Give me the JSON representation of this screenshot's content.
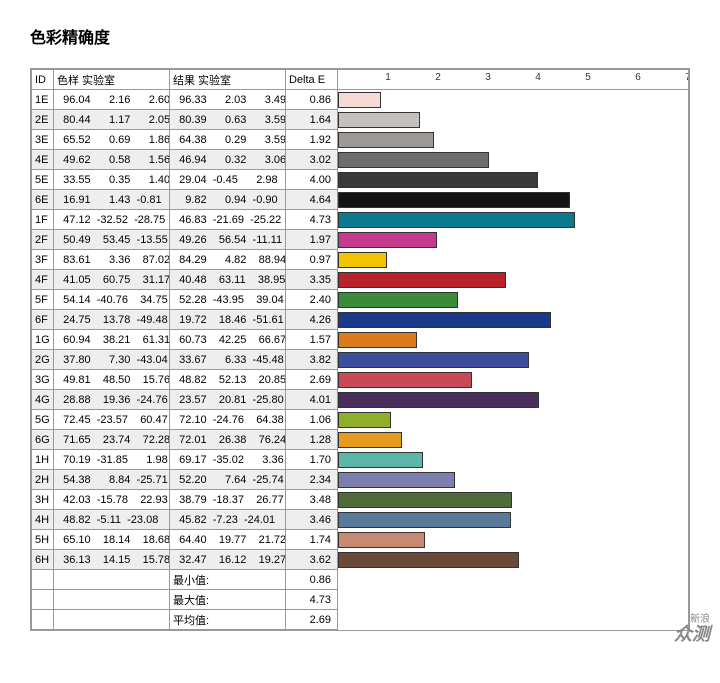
{
  "title": "色彩精确度",
  "headers": {
    "id": "ID",
    "sample": "色样 实验室",
    "result": "结果 实验室",
    "delta": "Delta E"
  },
  "chart": {
    "max": 7,
    "ticks": [
      1,
      2,
      3,
      4,
      5,
      6,
      7
    ],
    "bar_border": "#333333"
  },
  "rows": [
    {
      "id": "1E",
      "s": [
        "96.04",
        "2.16",
        "2.60"
      ],
      "r": [
        "96.33",
        "2.03",
        "3.49"
      ],
      "de": "0.86",
      "color": "#f4d9d4"
    },
    {
      "id": "2E",
      "s": [
        "80.44",
        "1.17",
        "2.05"
      ],
      "r": [
        "80.39",
        "0.63",
        "3.59"
      ],
      "de": "1.64",
      "color": "#c4c0be"
    },
    {
      "id": "3E",
      "s": [
        "65.52",
        "0.69",
        "1.86"
      ],
      "r": [
        "64.38",
        "0.29",
        "3.59"
      ],
      "de": "1.92",
      "color": "#9c9997"
    },
    {
      "id": "4E",
      "s": [
        "49.62",
        "0.58",
        "1.56"
      ],
      "r": [
        "46.94",
        "0.32",
        "3.06"
      ],
      "de": "3.02",
      "color": "#6f6d6b"
    },
    {
      "id": "5E",
      "s": [
        "33.55",
        "0.35",
        "1.40"
      ],
      "r": [
        "29.04",
        "-0.45",
        "2.98"
      ],
      "de": "4.00",
      "color": "#3c3a39"
    },
    {
      "id": "6E",
      "s": [
        "16.91",
        "1.43",
        "-0.81"
      ],
      "r": [
        "9.82",
        "0.94",
        "-0.90"
      ],
      "de": "4.64",
      "color": "#141312"
    },
    {
      "id": "1F",
      "s": [
        "47.12",
        "-32.52",
        "-28.75"
      ],
      "r": [
        "46.83",
        "-21.69",
        "-25.22"
      ],
      "de": "4.73",
      "color": "#0b7a8f"
    },
    {
      "id": "2F",
      "s": [
        "50.49",
        "53.45",
        "-13.55"
      ],
      "r": [
        "49.26",
        "56.54",
        "-11.11"
      ],
      "de": "1.97",
      "color": "#c33a8e"
    },
    {
      "id": "3F",
      "s": [
        "83.61",
        "3.36",
        "87.02"
      ],
      "r": [
        "84.29",
        "4.82",
        "88.94"
      ],
      "de": "0.97",
      "color": "#f2c300"
    },
    {
      "id": "4F",
      "s": [
        "41.05",
        "60.75",
        "31.17"
      ],
      "r": [
        "40.48",
        "63.11",
        "38.95"
      ],
      "de": "3.35",
      "color": "#b8222a"
    },
    {
      "id": "5F",
      "s": [
        "54.14",
        "-40.76",
        "34.75"
      ],
      "r": [
        "52.28",
        "-43.95",
        "39.04"
      ],
      "de": "2.40",
      "color": "#3a8b3a"
    },
    {
      "id": "6F",
      "s": [
        "24.75",
        "13.78",
        "-49.48"
      ],
      "r": [
        "19.72",
        "18.46",
        "-51.61"
      ],
      "de": "4.26",
      "color": "#1c3a8c"
    },
    {
      "id": "1G",
      "s": [
        "60.94",
        "38.21",
        "61.31"
      ],
      "r": [
        "60.73",
        "42.25",
        "66.67"
      ],
      "de": "1.57",
      "color": "#d97b1e"
    },
    {
      "id": "2G",
      "s": [
        "37.80",
        "7.30",
        "-43.04"
      ],
      "r": [
        "33.67",
        "6.33",
        "-45.48"
      ],
      "de": "3.82",
      "color": "#3a4e9c"
    },
    {
      "id": "3G",
      "s": [
        "49.81",
        "48.50",
        "15.76"
      ],
      "r": [
        "48.82",
        "52.13",
        "20.85"
      ],
      "de": "2.69",
      "color": "#c84a56"
    },
    {
      "id": "4G",
      "s": [
        "28.88",
        "19.36",
        "-24.76"
      ],
      "r": [
        "23.57",
        "20.81",
        "-25.80"
      ],
      "de": "4.01",
      "color": "#4a2f5c"
    },
    {
      "id": "5G",
      "s": [
        "72.45",
        "-23.57",
        "60.47"
      ],
      "r": [
        "72.10",
        "-24.76",
        "64.38"
      ],
      "de": "1.06",
      "color": "#8fae2a"
    },
    {
      "id": "6G",
      "s": [
        "71.65",
        "23.74",
        "72.28"
      ],
      "r": [
        "72.01",
        "26.38",
        "76.24"
      ],
      "de": "1.28",
      "color": "#e69a1e"
    },
    {
      "id": "1H",
      "s": [
        "70.19",
        "-31.85",
        "1.98"
      ],
      "r": [
        "69.17",
        "-35.02",
        "3.36"
      ],
      "de": "1.70",
      "color": "#5bb8a8"
    },
    {
      "id": "2H",
      "s": [
        "54.38",
        "8.84",
        "-25.71"
      ],
      "r": [
        "52.20",
        "7.64",
        "-25.74"
      ],
      "de": "2.34",
      "color": "#7a7fae"
    },
    {
      "id": "3H",
      "s": [
        "42.03",
        "-15.78",
        "22.93"
      ],
      "r": [
        "38.79",
        "-18.37",
        "26.77"
      ],
      "de": "3.48",
      "color": "#4f6b3a"
    },
    {
      "id": "4H",
      "s": [
        "48.82",
        "-5.11",
        "-23.08"
      ],
      "r": [
        "45.82",
        "-7.23",
        "-24.01"
      ],
      "de": "3.46",
      "color": "#5a7a9c"
    },
    {
      "id": "5H",
      "s": [
        "65.10",
        "18.14",
        "18.68"
      ],
      "r": [
        "64.40",
        "19.77",
        "21.72"
      ],
      "de": "1.74",
      "color": "#c98a73"
    },
    {
      "id": "6H",
      "s": [
        "36.13",
        "14.15",
        "15.78"
      ],
      "r": [
        "32.47",
        "16.12",
        "19.27"
      ],
      "de": "3.62",
      "color": "#6b4a3a"
    }
  ],
  "summary": [
    {
      "label": "最小值:",
      "value": "0.86"
    },
    {
      "label": "最大值:",
      "value": "4.73"
    },
    {
      "label": "平均值:",
      "value": "2.69"
    }
  ],
  "watermark": {
    "line1": "新浪",
    "line2": "众测"
  }
}
